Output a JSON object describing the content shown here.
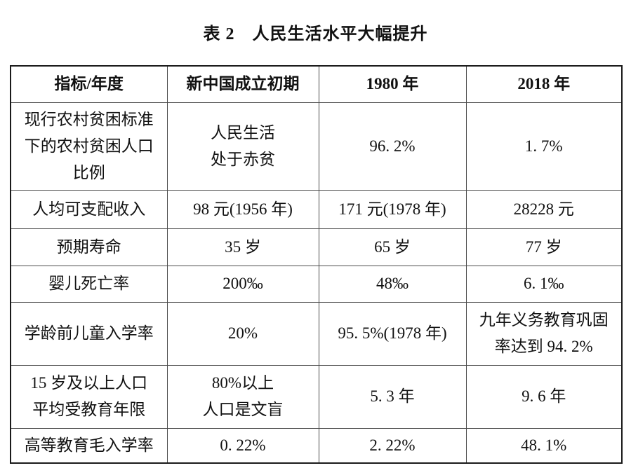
{
  "title": "表 2　人民生活水平大幅提升",
  "table": {
    "headers": [
      "指标/年度",
      "新中国成立初期",
      "1980 年",
      "2018 年"
    ],
    "rows": [
      [
        "现行农村贫困标准\n下的农村贫困人口\n比例",
        "人民生活\n处于赤贫",
        "96. 2%",
        "1. 7%"
      ],
      [
        "人均可支配收入",
        "98 元(1956 年)",
        "171 元(1978 年)",
        "28228 元"
      ],
      [
        "预期寿命",
        "35 岁",
        "65 岁",
        "77 岁"
      ],
      [
        "婴儿死亡率",
        "200‰",
        "48‰",
        "6. 1‰"
      ],
      [
        "学龄前儿童入学率",
        "20%",
        "95. 5%(1978 年)",
        "九年义务教育巩固\n率达到 94. 2%"
      ],
      [
        "15 岁及以上人口\n平均受教育年限",
        "80%以上\n人口是文盲",
        "5. 3 年",
        "9. 6 年"
      ],
      [
        "高等教育毛入学率",
        "0. 22%",
        "2. 22%",
        "48. 1%"
      ]
    ]
  },
  "colors": {
    "text": "#111111",
    "outer_border": "#1a1a1a",
    "inner_border": "#4a4a4a",
    "background": "#ffffff"
  }
}
